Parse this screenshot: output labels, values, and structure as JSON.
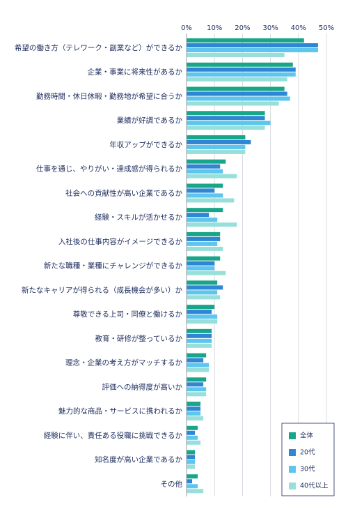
{
  "chart_data": {
    "type": "hbar",
    "categories": [
      "希望の働き方（テレワーク・副業など）ができるか",
      "企業・事業に将来性があるか",
      "勤務時間・休日休暇・勤務地が希望に合うか",
      "業績が好調であるか",
      "年収アップができるか",
      "仕事を通じ、やりがい・達成感が得られるか",
      "社会への貢献性が高い企業であるか",
      "経験・スキルが活かせるか",
      "入社後の仕事内容がイメージできるか",
      "新たな職種・業種にチャレンジができるか",
      "新たなキャリアが得られる（成長機会が多い）か",
      "尊敬できる上司・同僚と働けるか",
      "教育・研修が整っているか",
      "理念・企業の考え方がマッチするか",
      "評価への納得度が高いか",
      "魅力的な商品・サービスに携われるか",
      "経験に伴い、責任ある役職に挑戦できるか",
      "知名度が高い企業であるか",
      "その他"
    ],
    "series": [
      {
        "name": "全体",
        "color": "#17a68a",
        "values": [
          42,
          38,
          35,
          28,
          21,
          14,
          13,
          13,
          12,
          12,
          11,
          10,
          9,
          7,
          7,
          5,
          4,
          3,
          4
        ]
      },
      {
        "name": "20代",
        "color": "#2f86d4",
        "values": [
          47,
          39,
          36,
          28,
          23,
          12,
          10,
          8,
          12,
          10,
          13,
          9,
          9,
          6,
          6,
          5,
          3,
          3,
          2
        ]
      },
      {
        "name": "30代",
        "color": "#5cc6ee",
        "values": [
          47,
          39,
          37,
          30,
          21,
          13,
          13,
          11,
          11,
          10,
          11,
          11,
          9,
          8,
          7,
          5,
          4,
          3,
          4
        ]
      },
      {
        "name": "40代以上",
        "color": "#98dfdb",
        "values": [
          35,
          36,
          33,
          28,
          21,
          18,
          17,
          18,
          13,
          14,
          12,
          11,
          9,
          8,
          7,
          6,
          5,
          3,
          6
        ]
      }
    ],
    "xlim": [
      0,
      50
    ],
    "xticks": [
      {
        "value": 0,
        "label": "0%"
      },
      {
        "value": 10,
        "label": "10%"
      },
      {
        "value": 20,
        "label": "20%"
      },
      {
        "value": 30,
        "label": "30%"
      },
      {
        "value": 40,
        "label": "40%"
      },
      {
        "value": 50,
        "label": "50%"
      }
    ],
    "grid": true,
    "legend": "bottom-right"
  }
}
